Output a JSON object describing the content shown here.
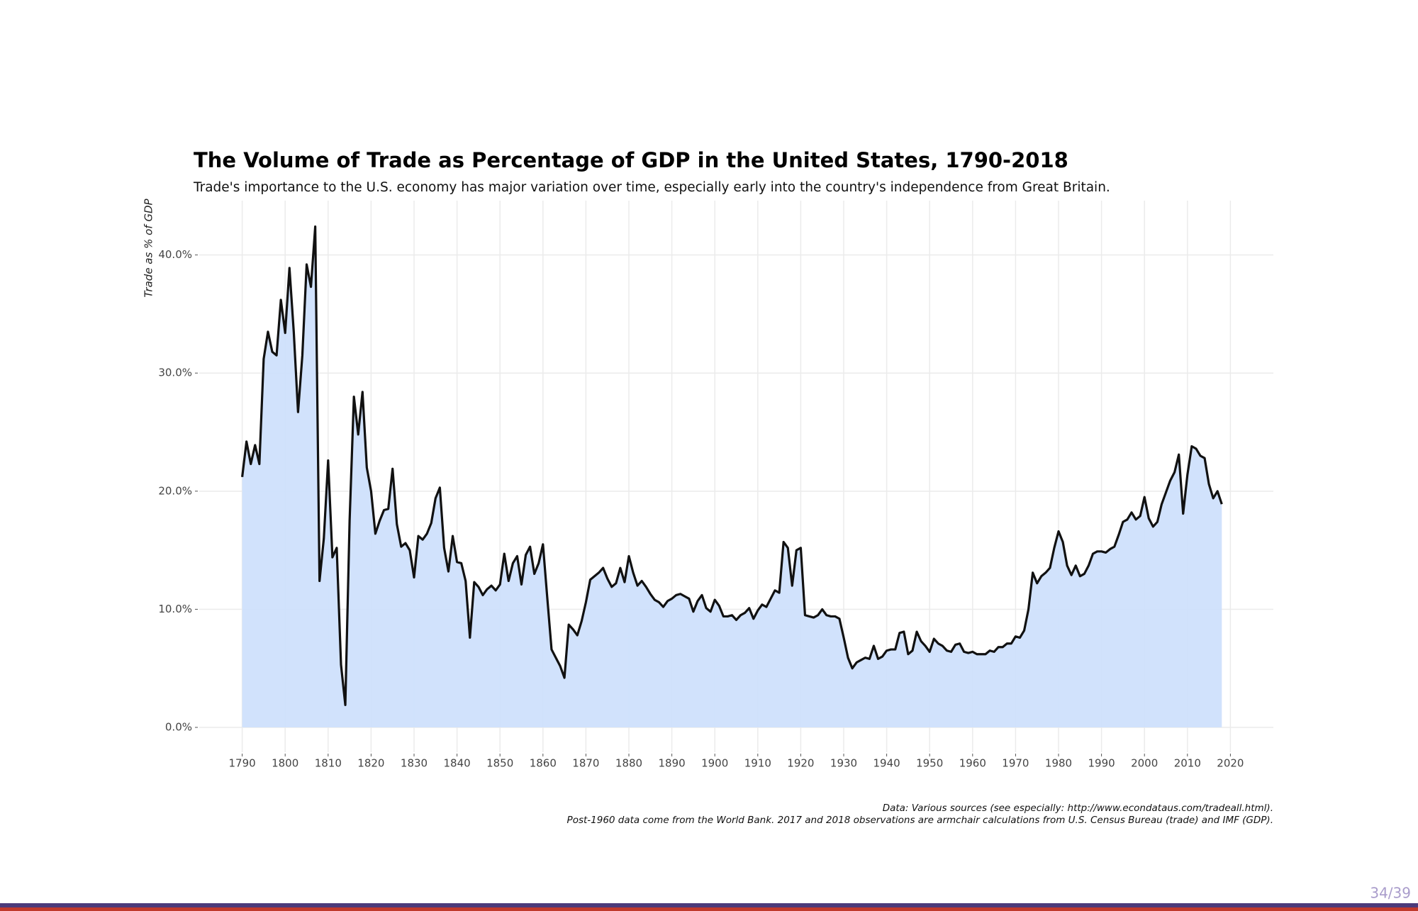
{
  "chart_data": {
    "type": "area",
    "title": "The Volume of Trade as Percentage of GDP in the United States, 1790-2018",
    "subtitle": "Trade's importance to the U.S. economy has major variation over time, especially early into the country's independence from Great Britain.",
    "y_label": "Trade as % of GDP",
    "caption": [
      "Data: Various sources (see especially: http://www.econdataus.com/tradeall.html).",
      "Post-1960 data come from the World Bank. 2017 and 2018 observations are armchair calculations from U.S. Census Bureau (trade) and IMF (GDP)."
    ],
    "page_number": "34/39",
    "fill_color": "#cfe0fc",
    "line_color": "#111111",
    "grid": true,
    "xlim": [
      1780,
      2030
    ],
    "ylim": [
      -2.1,
      44.6
    ],
    "xticks": [
      1790,
      1800,
      1810,
      1820,
      1830,
      1840,
      1850,
      1860,
      1870,
      1880,
      1890,
      1900,
      1910,
      1920,
      1930,
      1940,
      1950,
      1960,
      1970,
      1980,
      1990,
      2000,
      2010,
      2020
    ],
    "yticks": [
      {
        "value": 0,
        "label": "0.0%"
      },
      {
        "value": 10,
        "label": "10.0%"
      },
      {
        "value": 20,
        "label": "20.0%"
      },
      {
        "value": 30,
        "label": "30.0%"
      },
      {
        "value": 40,
        "label": "40.0%"
      }
    ],
    "x": [
      1790,
      1791,
      1792,
      1793,
      1794,
      1795,
      1796,
      1797,
      1798,
      1799,
      1800,
      1801,
      1802,
      1803,
      1804,
      1805,
      1806,
      1807,
      1808,
      1809,
      1810,
      1811,
      1812,
      1813,
      1814,
      1815,
      1816,
      1817,
      1818,
      1819,
      1820,
      1821,
      1822,
      1823,
      1824,
      1825,
      1826,
      1827,
      1828,
      1829,
      1830,
      1831,
      1832,
      1833,
      1834,
      1835,
      1836,
      1837,
      1838,
      1839,
      1840,
      1841,
      1842,
      1843,
      1844,
      1845,
      1846,
      1847,
      1848,
      1849,
      1850,
      1851,
      1852,
      1853,
      1854,
      1855,
      1856,
      1857,
      1858,
      1859,
      1860,
      1861,
      1862,
      1863,
      1864,
      1865,
      1866,
      1867,
      1868,
      1869,
      1870,
      1871,
      1872,
      1873,
      1874,
      1875,
      1876,
      1877,
      1878,
      1879,
      1880,
      1881,
      1882,
      1883,
      1884,
      1885,
      1886,
      1887,
      1888,
      1889,
      1890,
      1891,
      1892,
      1893,
      1894,
      1895,
      1896,
      1897,
      1898,
      1899,
      1900,
      1901,
      1902,
      1903,
      1904,
      1905,
      1906,
      1907,
      1908,
      1909,
      1910,
      1911,
      1912,
      1913,
      1914,
      1915,
      1916,
      1917,
      1918,
      1919,
      1920,
      1921,
      1922,
      1923,
      1924,
      1925,
      1926,
      1927,
      1928,
      1929,
      1930,
      1931,
      1932,
      1933,
      1934,
      1935,
      1936,
      1937,
      1938,
      1939,
      1940,
      1941,
      1942,
      1943,
      1944,
      1945,
      1946,
      1947,
      1948,
      1949,
      1950,
      1951,
      1952,
      1953,
      1954,
      1955,
      1956,
      1957,
      1958,
      1959,
      1960,
      1961,
      1962,
      1963,
      1964,
      1965,
      1966,
      1967,
      1968,
      1969,
      1970,
      1971,
      1972,
      1973,
      1974,
      1975,
      1976,
      1977,
      1978,
      1979,
      1980,
      1981,
      1982,
      1983,
      1984,
      1985,
      1986,
      1987,
      1988,
      1989,
      1990,
      1991,
      1992,
      1993,
      1994,
      1995,
      1996,
      1997,
      1998,
      1999,
      2000,
      2001,
      2002,
      2003,
      2004,
      2005,
      2006,
      2007,
      2008,
      2009,
      2010,
      2011,
      2012,
      2013,
      2014,
      2015,
      2016,
      2017,
      2018
    ],
    "values": [
      21.2,
      24.2,
      22.3,
      23.9,
      22.3,
      31.2,
      33.5,
      31.8,
      31.5,
      36.2,
      33.4,
      38.9,
      33.5,
      26.7,
      31.5,
      39.2,
      37.3,
      42.4,
      12.4,
      16.0,
      22.6,
      14.4,
      15.2,
      5.3,
      1.9,
      17.5,
      28.0,
      24.8,
      28.4,
      22.0,
      20.0,
      16.4,
      17.5,
      18.4,
      18.5,
      21.9,
      17.2,
      15.3,
      15.6,
      15.0,
      12.7,
      16.2,
      15.9,
      16.4,
      17.3,
      19.4,
      20.3,
      15.2,
      13.2,
      16.2,
      14.0,
      13.9,
      12.4,
      7.6,
      12.3,
      11.9,
      11.2,
      11.7,
      12.0,
      11.6,
      12.1,
      14.7,
      12.4,
      13.9,
      14.5,
      12.1,
      14.6,
      15.3,
      13.0,
      13.9,
      15.5,
      11.0,
      6.6,
      5.9,
      5.2,
      4.2,
      8.7,
      8.3,
      7.8,
      9.0,
      10.6,
      12.5,
      12.8,
      13.1,
      13.5,
      12.6,
      11.9,
      12.2,
      13.5,
      12.3,
      14.5,
      13.1,
      12.0,
      12.4,
      11.9,
      11.3,
      10.8,
      10.6,
      10.2,
      10.7,
      10.9,
      11.2,
      11.3,
      11.1,
      10.9,
      9.8,
      10.7,
      11.2,
      10.1,
      9.8,
      10.8,
      10.3,
      9.4,
      9.4,
      9.5,
      9.1,
      9.5,
      9.7,
      10.1,
      9.2,
      9.9,
      10.4,
      10.2,
      10.9,
      11.6,
      11.4,
      15.7,
      15.2,
      12.0,
      15.0,
      15.2,
      9.5,
      9.4,
      9.3,
      9.5,
      10.0,
      9.5,
      9.4,
      9.4,
      9.2,
      7.6,
      5.9,
      5.0,
      5.5,
      5.7,
      5.9,
      5.8,
      6.9,
      5.8,
      6.0,
      6.5,
      6.6,
      6.6,
      8.0,
      8.1,
      6.2,
      6.5,
      8.1,
      7.3,
      6.9,
      6.4,
      7.5,
      7.1,
      6.9,
      6.5,
      6.4,
      7.0,
      7.1,
      6.4,
      6.3,
      6.4,
      6.2,
      6.2,
      6.2,
      6.5,
      6.4,
      6.8,
      6.8,
      7.1,
      7.1,
      7.7,
      7.6,
      8.2,
      10.0,
      13.1,
      12.2,
      12.8,
      13.1,
      13.5,
      15.2,
      16.6,
      15.7,
      13.7,
      12.9,
      13.7,
      12.8,
      13.0,
      13.7,
      14.7,
      14.9,
      14.9,
      14.8,
      15.1,
      15.3,
      16.3,
      17.4,
      17.6,
      18.2,
      17.6,
      17.9,
      19.5,
      17.7,
      17.0,
      17.4,
      18.9,
      19.9,
      20.9,
      21.6,
      23.1,
      18.1,
      21.4,
      23.8,
      23.6,
      23.0,
      22.8,
      20.6,
      19.4,
      20.0,
      18.9
    ]
  }
}
